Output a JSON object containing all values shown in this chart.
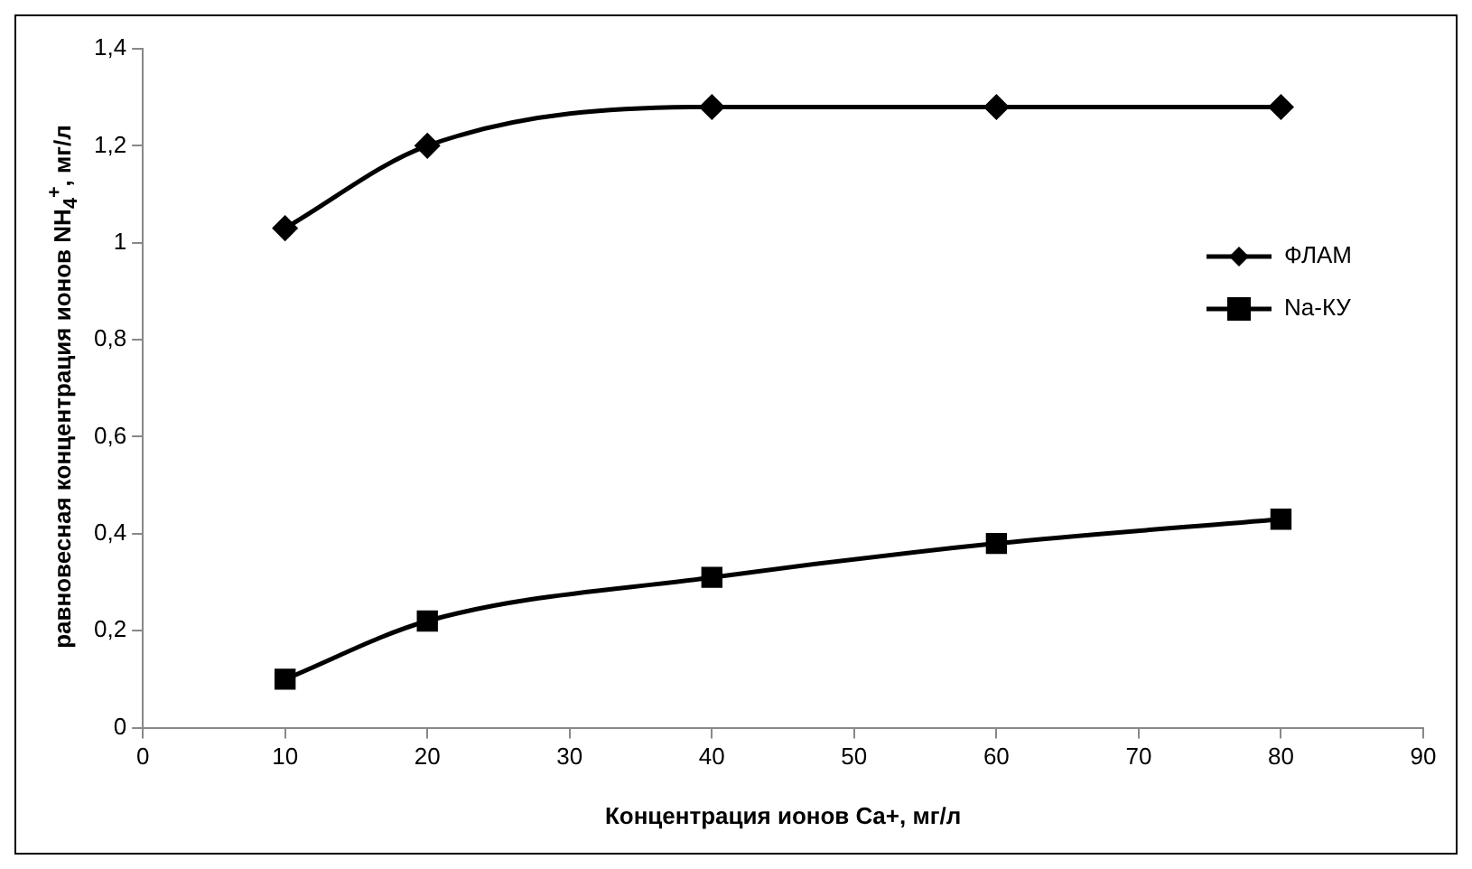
{
  "chart_data": {
    "type": "line",
    "xlabel": "Концентрация ионов Ca+, мг/л",
    "ylabel": "равновесная концентрация ионов NH$_{4}$$^{+}$, мг/л",
    "x": [
      10,
      20,
      40,
      60,
      80
    ],
    "series": [
      {
        "name": "ФЛАМ",
        "color": "#000000",
        "marker": "diamond",
        "values": [
          1.03,
          1.2,
          1.28,
          1.28,
          1.28
        ]
      },
      {
        "name": "Na-КУ",
        "color": "#000000",
        "marker": "square",
        "values": [
          0.1,
          0.22,
          0.31,
          0.38,
          0.43
        ]
      }
    ],
    "xlim": [
      0,
      90
    ],
    "xticks": [
      0,
      10,
      20,
      30,
      40,
      50,
      60,
      70,
      80,
      90
    ],
    "ylim": [
      0,
      1.4
    ],
    "yticks": [
      {
        "value": 0,
        "label": "0"
      },
      {
        "value": 0.2,
        "label": "0,2"
      },
      {
        "value": 0.4,
        "label": "0,4"
      },
      {
        "value": 0.6,
        "label": "0,6"
      },
      {
        "value": 0.8,
        "label": "0,8"
      },
      {
        "value": 1,
        "label": "1"
      },
      {
        "value": 1.2,
        "label": "1,2"
      },
      {
        "value": 1.4,
        "label": "1,4"
      }
    ],
    "grid": false,
    "legend": "right",
    "line_style": "solid"
  }
}
